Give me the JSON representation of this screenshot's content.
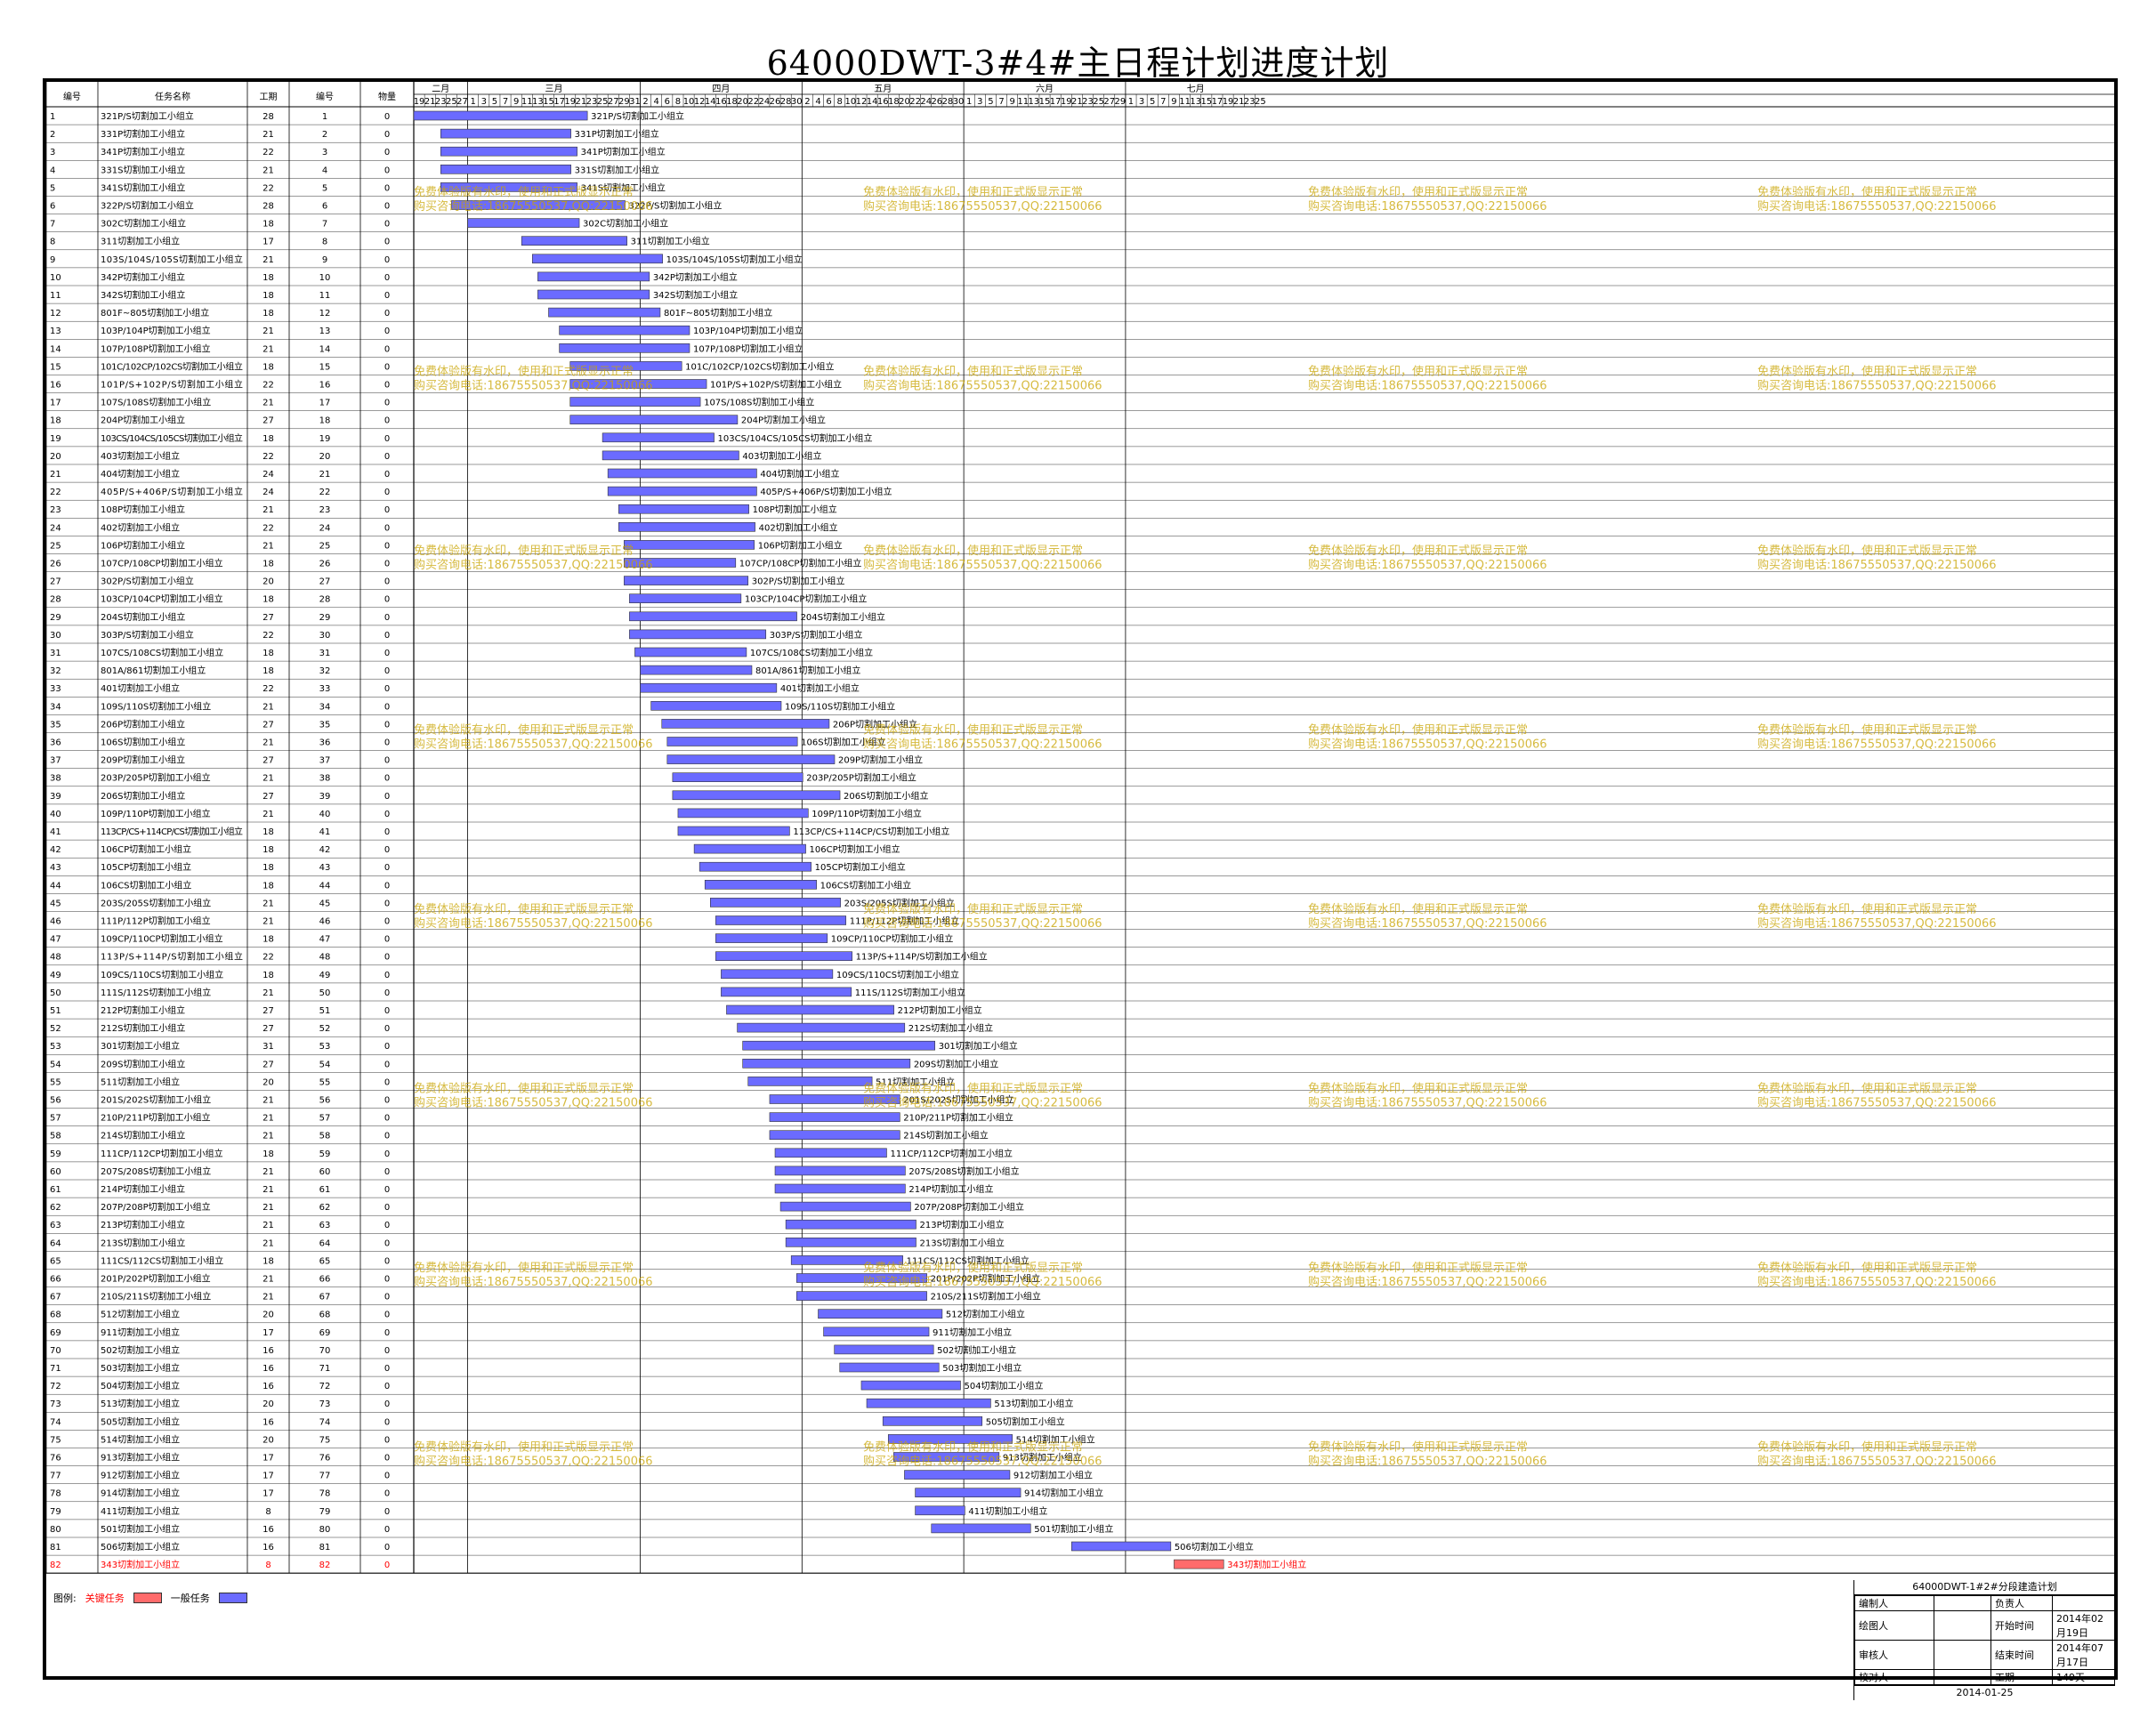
{
  "title": "64000DWT-3#4#主日程计划进度计划",
  "columns": {
    "id": "编号",
    "name": "任务名称",
    "dur": "工期",
    "seq": "编号",
    "qty": "物量"
  },
  "months": [
    {
      "label": "二月",
      "days": [
        19,
        21,
        23,
        25,
        27
      ]
    },
    {
      "label": "三月",
      "days": [
        1,
        3,
        5,
        7,
        9,
        11,
        13,
        15,
        17,
        19,
        21,
        23,
        25,
        27,
        29,
        31
      ]
    },
    {
      "label": "四月",
      "days": [
        2,
        4,
        6,
        8,
        10,
        12,
        14,
        16,
        18,
        20,
        22,
        24,
        26,
        28,
        30
      ]
    },
    {
      "label": "五月",
      "days": [
        2,
        4,
        6,
        8,
        10,
        12,
        14,
        16,
        18,
        20,
        22,
        24,
        26,
        28,
        30
      ]
    },
    {
      "label": "六月",
      "days": [
        1,
        3,
        5,
        7,
        9,
        11,
        13,
        15,
        17,
        19,
        21,
        23,
        25,
        27,
        29
      ]
    },
    {
      "label": "七月",
      "days": [
        1,
        3,
        5,
        7,
        9,
        11,
        13,
        15,
        17,
        19,
        21,
        23,
        25
      ]
    }
  ],
  "watermark": {
    "line1": "免费体验版有水印，使用和正式版显示正常",
    "line2": "购买咨询电话:18675550537,QQ:22150066"
  },
  "legend": {
    "label": "图例:",
    "critical": "关键任务",
    "normal": "一般任务",
    "critical_color": "#ff6b6b",
    "normal_color": "#6b6bff"
  },
  "infobox": {
    "title": "64000DWT-1#2#分段建造计划",
    "rows": [
      [
        "编制人",
        "",
        "负责人",
        ""
      ],
      [
        "绘图人",
        "",
        "开始时间",
        "2014年02月19日"
      ],
      [
        "审核人",
        "",
        "结束时间",
        "2014年07月17日"
      ],
      [
        "校对人",
        "",
        "工期",
        "149天"
      ]
    ],
    "date": "2014-01-25"
  },
  "chart_data": {
    "type": "gantt",
    "start_date": "2014-02-19",
    "end_date": "2014-07-17",
    "tasks": [
      {
        "id": 1,
        "name": "321P/S切割加工小组立",
        "dur": 28,
        "start": 0,
        "qty": 0
      },
      {
        "id": 2,
        "name": "331P切割加工小组立",
        "dur": 21,
        "start": 5,
        "qty": 0
      },
      {
        "id": 3,
        "name": "341P切割加工小组立",
        "dur": 22,
        "start": 5,
        "qty": 0
      },
      {
        "id": 4,
        "name": "331S切割加工小组立",
        "dur": 21,
        "start": 5,
        "qty": 0
      },
      {
        "id": 5,
        "name": "341S切割加工小组立",
        "dur": 22,
        "start": 5,
        "qty": 0
      },
      {
        "id": 6,
        "name": "322P/S切割加工小组立",
        "dur": 28,
        "start": 7,
        "qty": 0
      },
      {
        "id": 7,
        "name": "302C切割加工小组立",
        "dur": 18,
        "start": 10,
        "qty": 0
      },
      {
        "id": 8,
        "name": "311切割加工小组立",
        "dur": 17,
        "start": 20,
        "qty": 0
      },
      {
        "id": 9,
        "name": "103S/104S/105S切割加工小组立",
        "dur": 21,
        "start": 22,
        "qty": 0
      },
      {
        "id": 10,
        "name": "342P切割加工小组立",
        "dur": 18,
        "start": 23,
        "qty": 0
      },
      {
        "id": 11,
        "name": "342S切割加工小组立",
        "dur": 18,
        "start": 23,
        "qty": 0
      },
      {
        "id": 12,
        "name": "801F~805切割加工小组立",
        "dur": 18,
        "start": 25,
        "qty": 0
      },
      {
        "id": 13,
        "name": "103P/104P切割加工小组立",
        "dur": 21,
        "start": 27,
        "qty": 0
      },
      {
        "id": 14,
        "name": "107P/108P切割加工小组立",
        "dur": 21,
        "start": 27,
        "qty": 0
      },
      {
        "id": 15,
        "name": "101C/102CP/102CS切割加工小组立",
        "dur": 18,
        "start": 29,
        "qty": 0
      },
      {
        "id": 16,
        "name": "101P/S+102P/S切割加工小组立",
        "dur": 22,
        "start": 29,
        "qty": 0
      },
      {
        "id": 17,
        "name": "107S/108S切割加工小组立",
        "dur": 21,
        "start": 29,
        "qty": 0
      },
      {
        "id": 18,
        "name": "204P切割加工小组立",
        "dur": 27,
        "start": 29,
        "qty": 0
      },
      {
        "id": 19,
        "name": "103CS/104CS/105CS切割加工小组立",
        "dur": 18,
        "start": 35,
        "qty": 0
      },
      {
        "id": 20,
        "name": "403切割加工小组立",
        "dur": 22,
        "start": 35,
        "qty": 0
      },
      {
        "id": 21,
        "name": "404切割加工小组立",
        "dur": 24,
        "start": 36,
        "qty": 0
      },
      {
        "id": 22,
        "name": "405P/S+406P/S切割加工小组立",
        "dur": 24,
        "start": 36,
        "qty": 0
      },
      {
        "id": 23,
        "name": "108P切割加工小组立",
        "dur": 21,
        "start": 38,
        "qty": 0
      },
      {
        "id": 24,
        "name": "402切割加工小组立",
        "dur": 22,
        "start": 38,
        "qty": 0
      },
      {
        "id": 25,
        "name": "106P切割加工小组立",
        "dur": 21,
        "start": 39,
        "qty": 0
      },
      {
        "id": 26,
        "name": "107CP/108CP切割加工小组立",
        "dur": 18,
        "start": 39,
        "qty": 0
      },
      {
        "id": 27,
        "name": "302P/S切割加工小组立",
        "dur": 20,
        "start": 39,
        "qty": 0
      },
      {
        "id": 28,
        "name": "103CP/104CP切割加工小组立",
        "dur": 18,
        "start": 40,
        "qty": 0
      },
      {
        "id": 29,
        "name": "204S切割加工小组立",
        "dur": 27,
        "start": 40,
        "qty": 0
      },
      {
        "id": 30,
        "name": "303P/S切割加工小组立",
        "dur": 22,
        "start": 40,
        "qty": 0
      },
      {
        "id": 31,
        "name": "107CS/108CS切割加工小组立",
        "dur": 18,
        "start": 41,
        "qty": 0
      },
      {
        "id": 32,
        "name": "801A/861切割加工小组立",
        "dur": 18,
        "start": 42,
        "qty": 0
      },
      {
        "id": 33,
        "name": "401切割加工小组立",
        "dur": 22,
        "start": 42,
        "qty": 0
      },
      {
        "id": 34,
        "name": "109S/110S切割加工小组立",
        "dur": 21,
        "start": 44,
        "qty": 0
      },
      {
        "id": 35,
        "name": "206P切割加工小组立",
        "dur": 27,
        "start": 46,
        "qty": 0
      },
      {
        "id": 36,
        "name": "106S切割加工小组立",
        "dur": 21,
        "start": 47,
        "qty": 0
      },
      {
        "id": 37,
        "name": "209P切割加工小组立",
        "dur": 27,
        "start": 47,
        "qty": 0
      },
      {
        "id": 38,
        "name": "203P/205P切割加工小组立",
        "dur": 21,
        "start": 48,
        "qty": 0
      },
      {
        "id": 39,
        "name": "206S切割加工小组立",
        "dur": 27,
        "start": 48,
        "qty": 0
      },
      {
        "id": 40,
        "name": "109P/110P切割加工小组立",
        "dur": 21,
        "start": 49,
        "qty": 0
      },
      {
        "id": 41,
        "name": "113CP/CS+114CP/CS切割加工小组立",
        "dur": 18,
        "start": 49,
        "qty": 0
      },
      {
        "id": 42,
        "name": "106CP切割加工小组立",
        "dur": 18,
        "start": 52,
        "qty": 0
      },
      {
        "id": 43,
        "name": "105CP切割加工小组立",
        "dur": 18,
        "start": 53,
        "qty": 0
      },
      {
        "id": 44,
        "name": "106CS切割加工小组立",
        "dur": 18,
        "start": 54,
        "qty": 0
      },
      {
        "id": 45,
        "name": "203S/205S切割加工小组立",
        "dur": 21,
        "start": 55,
        "qty": 0
      },
      {
        "id": 46,
        "name": "111P/112P切割加工小组立",
        "dur": 21,
        "start": 56,
        "qty": 0
      },
      {
        "id": 47,
        "name": "109CP/110CP切割加工小组立",
        "dur": 18,
        "start": 56,
        "qty": 0
      },
      {
        "id": 48,
        "name": "113P/S+114P/S切割加工小组立",
        "dur": 22,
        "start": 56,
        "qty": 0
      },
      {
        "id": 49,
        "name": "109CS/110CS切割加工小组立",
        "dur": 18,
        "start": 57,
        "qty": 0
      },
      {
        "id": 50,
        "name": "111S/112S切割加工小组立",
        "dur": 21,
        "start": 57,
        "qty": 0
      },
      {
        "id": 51,
        "name": "212P切割加工小组立",
        "dur": 27,
        "start": 58,
        "qty": 0
      },
      {
        "id": 52,
        "name": "212S切割加工小组立",
        "dur": 27,
        "start": 60,
        "qty": 0
      },
      {
        "id": 53,
        "name": "301切割加工小组立",
        "dur": 31,
        "start": 61,
        "qty": 0
      },
      {
        "id": 54,
        "name": "209S切割加工小组立",
        "dur": 27,
        "start": 61,
        "qty": 0
      },
      {
        "id": 55,
        "name": "511切割加工小组立",
        "dur": 20,
        "start": 62,
        "qty": 0
      },
      {
        "id": 56,
        "name": "201S/202S切割加工小组立",
        "dur": 21,
        "start": 66,
        "qty": 0
      },
      {
        "id": 57,
        "name": "210P/211P切割加工小组立",
        "dur": 21,
        "start": 66,
        "qty": 0
      },
      {
        "id": 58,
        "name": "214S切割加工小组立",
        "dur": 21,
        "start": 66,
        "qty": 0
      },
      {
        "id": 59,
        "name": "111CP/112CP切割加工小组立",
        "dur": 18,
        "start": 67,
        "qty": 0
      },
      {
        "id": 60,
        "name": "207S/208S切割加工小组立",
        "dur": 21,
        "start": 67,
        "qty": 0
      },
      {
        "id": 61,
        "name": "214P切割加工小组立",
        "dur": 21,
        "start": 67,
        "qty": 0
      },
      {
        "id": 62,
        "name": "207P/208P切割加工小组立",
        "dur": 21,
        "start": 68,
        "qty": 0
      },
      {
        "id": 63,
        "name": "213P切割加工小组立",
        "dur": 21,
        "start": 69,
        "qty": 0
      },
      {
        "id": 64,
        "name": "213S切割加工小组立",
        "dur": 21,
        "start": 69,
        "qty": 0
      },
      {
        "id": 65,
        "name": "111CS/112CS切割加工小组立",
        "dur": 18,
        "start": 70,
        "qty": 0
      },
      {
        "id": 66,
        "name": "201P/202P切割加工小组立",
        "dur": 21,
        "start": 71,
        "qty": 0
      },
      {
        "id": 67,
        "name": "210S/211S切割加工小组立",
        "dur": 21,
        "start": 71,
        "qty": 0
      },
      {
        "id": 68,
        "name": "512切割加工小组立",
        "dur": 20,
        "start": 75,
        "qty": 0
      },
      {
        "id": 69,
        "name": "911切割加工小组立",
        "dur": 17,
        "start": 76,
        "qty": 0
      },
      {
        "id": 70,
        "name": "502切割加工小组立",
        "dur": 16,
        "start": 78,
        "qty": 0
      },
      {
        "id": 71,
        "name": "503切割加工小组立",
        "dur": 16,
        "start": 79,
        "qty": 0
      },
      {
        "id": 72,
        "name": "504切割加工小组立",
        "dur": 16,
        "start": 83,
        "qty": 0
      },
      {
        "id": 73,
        "name": "513切割加工小组立",
        "dur": 20,
        "start": 84,
        "qty": 0
      },
      {
        "id": 74,
        "name": "505切割加工小组立",
        "dur": 16,
        "start": 87,
        "qty": 0
      },
      {
        "id": 75,
        "name": "514切割加工小组立",
        "dur": 20,
        "start": 88,
        "qty": 0
      },
      {
        "id": 76,
        "name": "913切割加工小组立",
        "dur": 17,
        "start": 89,
        "qty": 0
      },
      {
        "id": 77,
        "name": "912切割加工小组立",
        "dur": 17,
        "start": 91,
        "qty": 0
      },
      {
        "id": 78,
        "name": "914切割加工小组立",
        "dur": 17,
        "start": 93,
        "qty": 0
      },
      {
        "id": 79,
        "name": "411切割加工小组立",
        "dur": 8,
        "start": 93,
        "qty": 0
      },
      {
        "id": 80,
        "name": "501切割加工小组立",
        "dur": 16,
        "start": 96,
        "qty": 0
      },
      {
        "id": 81,
        "name": "506切割加工小组立",
        "dur": 16,
        "start": 122,
        "qty": 0
      },
      {
        "id": 82,
        "name": "343切割加工小组立",
        "dur": 8,
        "start": 141,
        "qty": 0,
        "critical": true
      }
    ]
  }
}
